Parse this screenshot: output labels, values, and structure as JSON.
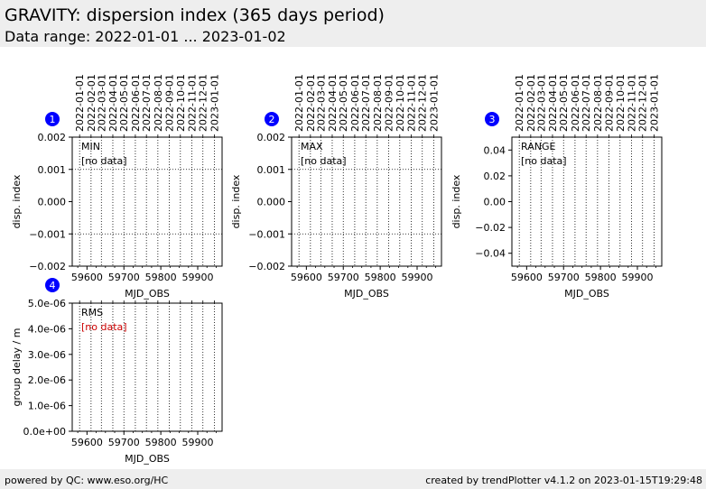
{
  "header": {
    "title": "GRAVITY: dispersion index (365 days period)",
    "subtitle": "Data range: 2022-01-01 ... 2023-01-02"
  },
  "footer": {
    "left": "powered by QC: www.eso.org/HC",
    "right": "created by trendPlotter v4.1.2 on 2023-01-15T19:29:48"
  },
  "colors": {
    "badge": "#0000ff",
    "no_data_normal": "#000000",
    "no_data_alert": "#cc0000"
  },
  "chart_data": [
    {
      "type": "scatter",
      "panel": "1",
      "label": "MIN",
      "status": "[no data]",
      "status_color": "normal",
      "xlabel": "MJD_OBS",
      "ylabel": "disp. index",
      "xlim": [
        59560,
        59966
      ],
      "ylim": [
        -0.002,
        0.002
      ],
      "x_ticks": [
        59600,
        59700,
        59800,
        59900
      ],
      "x_tick_labels": [
        "59600",
        "59700",
        "59800",
        "59900"
      ],
      "y_ticks": [
        -0.002,
        -0.001,
        0.0,
        0.001,
        0.002
      ],
      "y_tick_labels": [
        "−0.002",
        "−0.001",
        "0.000",
        "0.001",
        "0.002"
      ],
      "hgrid": [
        -0.001,
        0.001
      ],
      "date_ticks": [
        59580,
        59611,
        59639,
        59670,
        59700,
        59731,
        59761,
        59792,
        59823,
        59853,
        59884,
        59914,
        59945
      ],
      "date_labels": [
        "2022-01-01",
        "2022-02-01",
        "2022-03-01",
        "2022-04-01",
        "2022-05-01",
        "2022-06-01",
        "2022-07-01",
        "2022-08-01",
        "2022-09-01",
        "2022-10-01",
        "2022-11-01",
        "2022-12-01",
        "2023-01-01"
      ],
      "points": []
    },
    {
      "type": "scatter",
      "panel": "2",
      "label": "MAX",
      "status": "[no data]",
      "status_color": "normal",
      "xlabel": "MJD_OBS",
      "ylabel": "disp. index",
      "xlim": [
        59560,
        59966
      ],
      "ylim": [
        -0.002,
        0.002
      ],
      "x_ticks": [
        59600,
        59700,
        59800,
        59900
      ],
      "x_tick_labels": [
        "59600",
        "59700",
        "59800",
        "59900"
      ],
      "y_ticks": [
        -0.002,
        -0.001,
        0.0,
        0.001,
        0.002
      ],
      "y_tick_labels": [
        "−0.002",
        "−0.001",
        "0.000",
        "0.001",
        "0.002"
      ],
      "hgrid": [
        -0.001,
        0.001
      ],
      "date_ticks": [
        59580,
        59611,
        59639,
        59670,
        59700,
        59731,
        59761,
        59792,
        59823,
        59853,
        59884,
        59914,
        59945
      ],
      "date_labels": [
        "2022-01-01",
        "2022-02-01",
        "2022-03-01",
        "2022-04-01",
        "2022-05-01",
        "2022-06-01",
        "2022-07-01",
        "2022-08-01",
        "2022-09-01",
        "2022-10-01",
        "2022-11-01",
        "2022-12-01",
        "2023-01-01"
      ],
      "points": []
    },
    {
      "type": "scatter",
      "panel": "3",
      "label": "RANGE",
      "status": "[no data]",
      "status_color": "normal",
      "xlabel": "MJD_OBS",
      "ylabel": "disp. index",
      "xlim": [
        59560,
        59966
      ],
      "ylim": [
        -0.05,
        0.05
      ],
      "x_ticks": [
        59600,
        59700,
        59800,
        59900
      ],
      "x_tick_labels": [
        "59600",
        "59700",
        "59800",
        "59900"
      ],
      "y_ticks": [
        -0.04,
        -0.02,
        0.0,
        0.02,
        0.04
      ],
      "y_tick_labels": [
        "−0.04",
        "−0.02",
        "0.00",
        "0.02",
        "0.04"
      ],
      "hgrid": [],
      "date_ticks": [
        59580,
        59611,
        59639,
        59670,
        59700,
        59731,
        59761,
        59792,
        59823,
        59853,
        59884,
        59914,
        59945
      ],
      "date_labels": [
        "2022-01-01",
        "2022-02-01",
        "2022-03-01",
        "2022-04-01",
        "2022-05-01",
        "2022-06-01",
        "2022-07-01",
        "2022-08-01",
        "2022-09-01",
        "2022-10-01",
        "2022-11-01",
        "2022-12-01",
        "2023-01-01"
      ],
      "points": []
    },
    {
      "type": "scatter",
      "panel": "4",
      "label": "RMS",
      "status": "[no data]",
      "status_color": "alert",
      "xlabel": "MJD_OBS",
      "ylabel": "group delay / m",
      "xlim": [
        59560,
        59966
      ],
      "ylim": [
        0,
        5e-06
      ],
      "x_ticks": [
        59600,
        59700,
        59800,
        59900
      ],
      "x_tick_labels": [
        "59600",
        "59700",
        "59800",
        "59900"
      ],
      "y_ticks": [
        0,
        1e-06,
        2e-06,
        3e-06,
        4e-06,
        5e-06
      ],
      "y_tick_labels": [
        "0.0e+00",
        "1.0e-06",
        "2.0e-06",
        "3.0e-06",
        "4.0e-06",
        "5.0e-06"
      ],
      "hgrid": [],
      "date_ticks": [
        59580,
        59611,
        59639,
        59670,
        59700,
        59731,
        59761,
        59792,
        59823,
        59853,
        59884,
        59914,
        59945
      ],
      "date_labels": [],
      "points": []
    }
  ]
}
